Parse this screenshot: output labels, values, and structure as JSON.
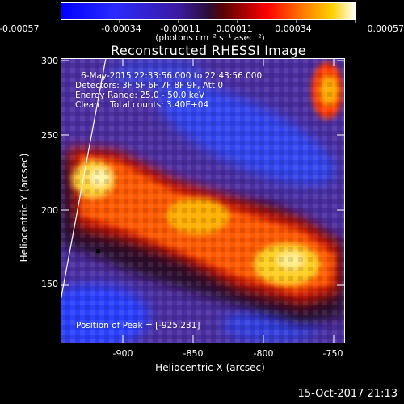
{
  "colorbar": {
    "labels": [
      "-0.00057",
      "-0.00034",
      "-0.00011",
      "0.00011",
      "0.00034",
      "0.00057"
    ],
    "units": "(photons cm⁻² s⁻¹ asec⁻²)"
  },
  "title": "Reconstructed RHESSI Image",
  "info": {
    "time": "6-May-2015 22:33:56.000 to 22:43:56.000",
    "detectors": "Detectors: 3F 5F 6F 7F 8F 9F, Att 0",
    "energy": "Energy Range: 25.0 - 50.0 keV",
    "clean": "Clean    Total counts: 3.40E+04"
  },
  "peak": "Position of Peak = [-925,231]",
  "x_axis": {
    "label": "Heliocentric X (arcsec)",
    "ticks": [
      "-900",
      "-850",
      "-800",
      "-750"
    ]
  },
  "y_axis": {
    "label": "Heliocentric Y (arcsec)",
    "ticks": [
      "150",
      "200",
      "250",
      "300"
    ]
  },
  "footer_date": "15-Oct-2017 21:13",
  "colors": {
    "cold": "#2a3cff",
    "mid": "#4b2a8a",
    "warm": "#ff3b00",
    "hot": "#fff3a0"
  }
}
